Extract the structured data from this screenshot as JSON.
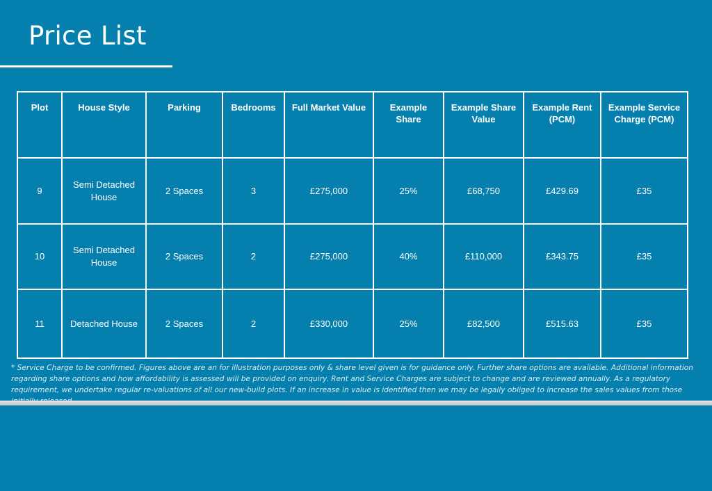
{
  "page": {
    "title": "Price List",
    "background": "#0580AE"
  },
  "table": {
    "headers": [
      "Plot",
      "House Style",
      "Parking",
      "Bedrooms",
      "Full Market Value",
      "Example Share",
      "Example Share Value",
      "Example Rent (PCM)",
      "Example Service Charge (PCM)"
    ],
    "rows": [
      [
        "9",
        "Semi Detached House",
        "2 Spaces",
        "3",
        "£275,000",
        "25%",
        "£68,750",
        "£429.69",
        "£35"
      ],
      [
        "10",
        "Semi Detached House",
        "2 Spaces",
        "2",
        "£275,000",
        "40%",
        "£110,000",
        "£343.75",
        "£35"
      ],
      [
        "11",
        "Detached House",
        "2 Spaces",
        "2",
        "£330,000",
        "25%",
        "£82,500",
        "£515.63",
        "£35"
      ]
    ]
  },
  "footnote": "* Service Charge to be confirmed. Figures above are an for illustration purposes only & share level given is for guidance only. Further share options are available. Additional information regarding share options and how affordability is assessed will be provided on enquiry. Rent and Service Charges are subject to change and are reviewed annually. As a regulatory requirement, we undertake regular re-valuations of all our new-build plots. If an increase in value is identified then we may be legally obliged to increase the sales values from those initially released."
}
